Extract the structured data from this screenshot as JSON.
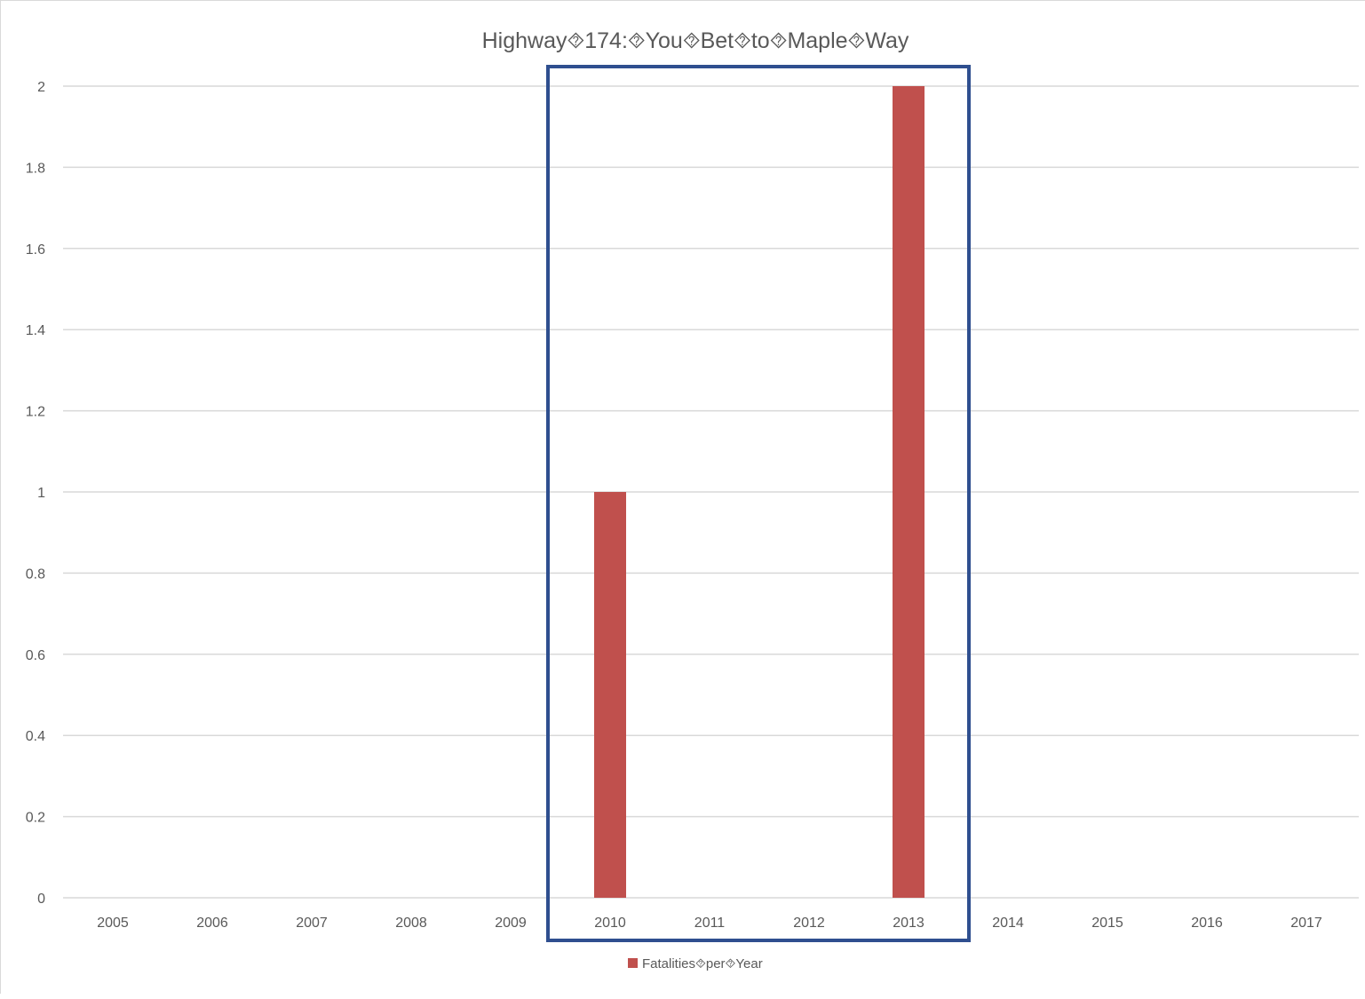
{
  "chart_data": {
    "type": "bar",
    "title": "Highway⯑174:⯑You⯑Bet⯑to⯑Maple⯑Way",
    "categories": [
      "2005",
      "2006",
      "2007",
      "2008",
      "2009",
      "2010",
      "2011",
      "2012",
      "2013",
      "2014",
      "2015",
      "2016",
      "2017"
    ],
    "series": [
      {
        "name": "Fatalities⯑per⯑Year",
        "values": [
          0,
          0,
          0,
          0,
          0,
          1,
          0,
          0,
          2,
          0,
          0,
          0,
          0
        ],
        "color": "#c0504d"
      }
    ],
    "ylim": [
      0,
      2
    ],
    "yticks": [
      "0",
      "0.2",
      "0.4",
      "0.6",
      "0.8",
      "1",
      "1.2",
      "1.4",
      "1.6",
      "1.8",
      "2"
    ],
    "xlabel": "",
    "ylabel": "",
    "grid": true,
    "legend_position": "bottom",
    "highlight": {
      "from_category": "2010",
      "to_category": "2013",
      "color": "#2f4f8f"
    }
  }
}
